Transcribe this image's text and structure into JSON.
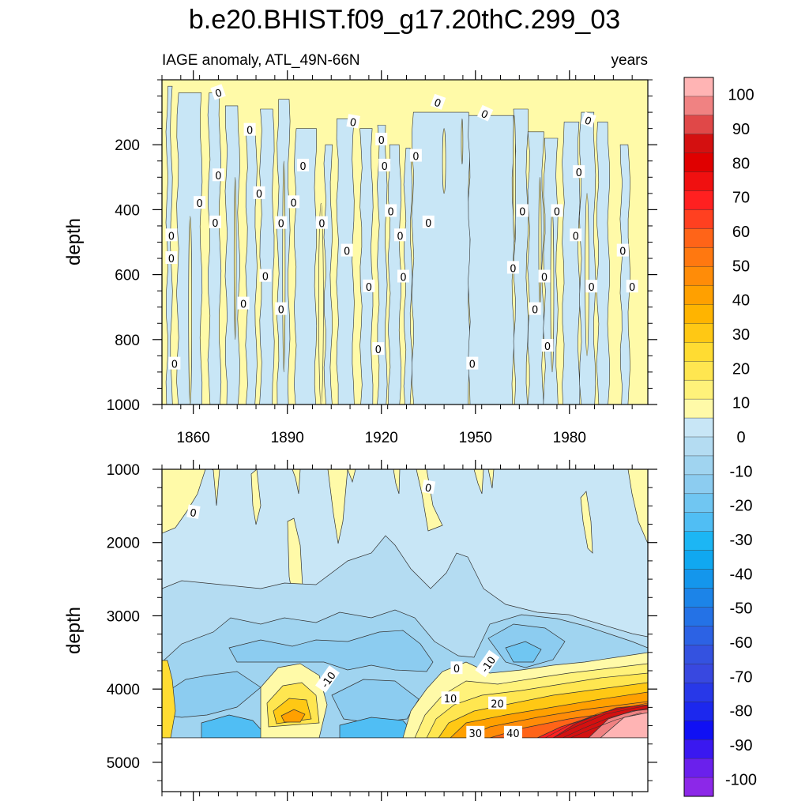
{
  "chart_data": {
    "type": "heatmap",
    "title": "b.e20.BHIST.f09_g17.20thC.299_03",
    "subtitle_left": "IAGE anomaly, ATL_49N-66N",
    "subtitle_right": "years",
    "xaxis": {
      "range": [
        1850,
        2005
      ],
      "ticks": [
        1860,
        1890,
        1920,
        1950,
        1980
      ],
      "tick_labels": [
        "1860",
        "1890",
        "1920",
        "1950",
        "1980"
      ]
    },
    "panels": [
      {
        "ylabel": "depth",
        "ylim": [
          0,
          1000
        ],
        "reversed": true,
        "yticks": [
          200,
          400,
          600,
          800,
          1000
        ],
        "ytick_labels": [
          "200",
          "400",
          "600",
          "800",
          "1000"
        ],
        "contour_labels": [
          "0"
        ],
        "description_values": {
          "background": "0 to 10",
          "bands": "-10 to 0",
          "band_years": [
            1851,
            1859,
            1865,
            1870,
            1882,
            1888,
            1897,
            1908,
            1913,
            1921,
            1926,
            1931,
            1937,
            1954,
            1968,
            1974,
            1977,
            1984,
            1993
          ]
        }
      },
      {
        "ylabel": "depth",
        "ylim": [
          1000,
          5400
        ],
        "reversed": true,
        "yticks": [
          1000,
          2000,
          3000,
          4000,
          5000
        ],
        "ytick_labels": [
          "1000",
          "2000",
          "3000",
          "4000",
          "5000"
        ],
        "bottom_depth": 4650,
        "contour_labels": [
          "0",
          "0",
          "-10",
          "0",
          "-10",
          "10",
          "20",
          "30",
          "40"
        ]
      }
    ],
    "colorbar": {
      "min": -105,
      "max": 105,
      "step": 5,
      "labels": [
        "100",
        "90",
        "80",
        "70",
        "60",
        "50",
        "40",
        "30",
        "20",
        "10",
        "0",
        "-10",
        "-20",
        "-30",
        "-40",
        "-50",
        "-60",
        "-70",
        "-80",
        "-90",
        "-100"
      ],
      "label_values": [
        100,
        90,
        80,
        70,
        60,
        50,
        40,
        30,
        20,
        10,
        0,
        -10,
        -20,
        -30,
        -40,
        -50,
        -60,
        -70,
        -80,
        -90,
        -100
      ],
      "colors": [
        "#ffb4b4",
        "#f08282",
        "#e04848",
        "#d41010",
        "#e00000",
        "#f01010",
        "#ff2020",
        "#ff4020",
        "#ff6418",
        "#ff7810",
        "#ff8c08",
        "#ffa000",
        "#ffb400",
        "#ffc814",
        "#ffdc32",
        "#ffe650",
        "#fff27a",
        "#fffaa8",
        "#c8e6f6",
        "#b4dcf2",
        "#a0d4f0",
        "#8cccf0",
        "#70c6f2",
        "#50bef4",
        "#1cb6f4",
        "#10a8f0",
        "#1496ec",
        "#1c84e8",
        "#2472e6",
        "#2c62e4",
        "#3452e0",
        "#3848e0",
        "#2838e8",
        "#1c28ee",
        "#1010f4",
        "#3a18f0",
        "#6a20ec",
        "#8c28e8"
      ]
    }
  }
}
